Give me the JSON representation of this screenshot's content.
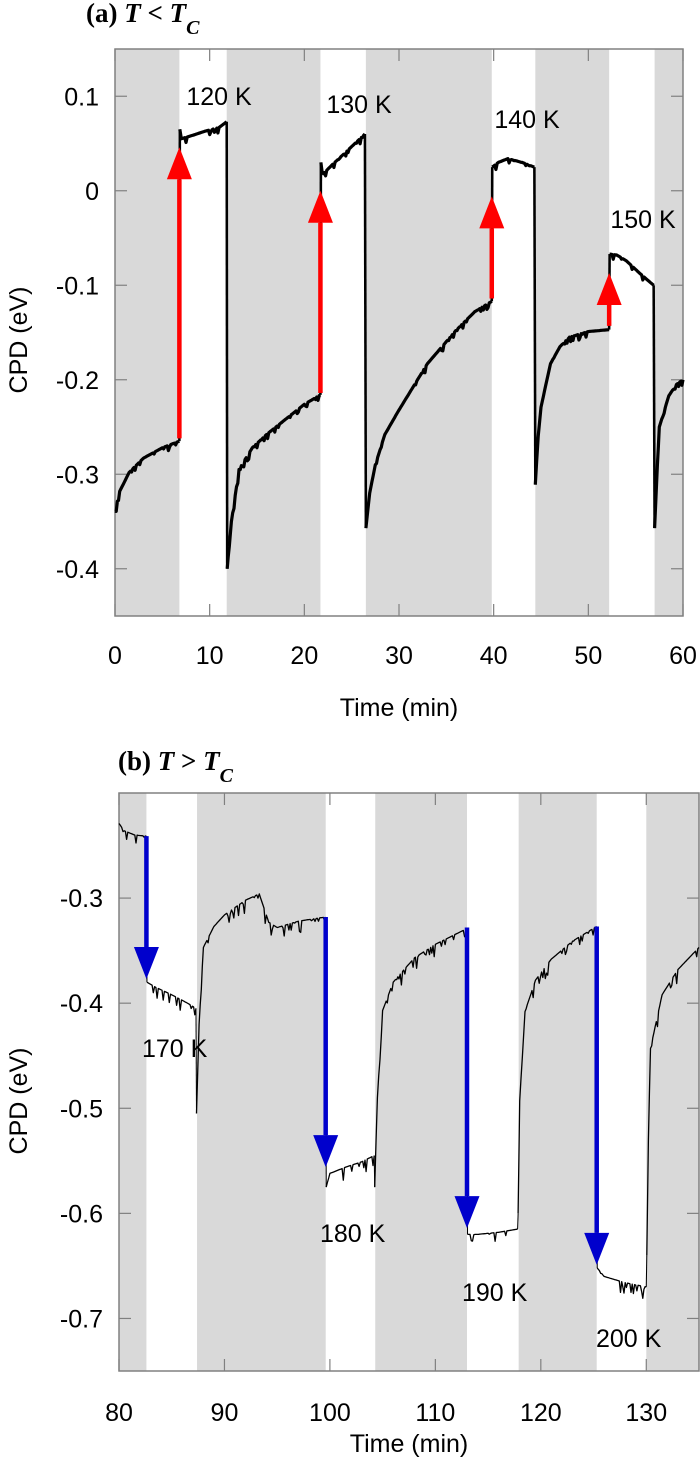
{
  "chart_data": [
    {
      "type": "line",
      "title_prefix": "(a)",
      "title_T": "T",
      "title_op": "<",
      "title_Tc": "T",
      "title_sub": "C",
      "xlabel": "Time (min)",
      "ylabel": "CPD (eV)",
      "xlim": [
        0,
        60
      ],
      "ylim": [
        -0.45,
        0.15
      ],
      "xticks": [
        "0",
        "10",
        "20",
        "30",
        "40",
        "50",
        "60"
      ],
      "xtick_values": [
        0,
        10,
        20,
        30,
        40,
        50,
        60
      ],
      "yticks": [
        "0.1",
        "0",
        "-0.1",
        "-0.2",
        "-0.3",
        "-0.4"
      ],
      "ytick_values": [
        0.1,
        0,
        -0.1,
        -0.2,
        -0.3,
        -0.4
      ],
      "grid": false,
      "shaded_intervals": [
        [
          0,
          6.8
        ],
        [
          11.8,
          21.7
        ],
        [
          26.5,
          39.8
        ],
        [
          44.4,
          52.2
        ],
        [
          57,
          60
        ]
      ],
      "shade_color": "#d9d9d9",
      "line_color": "#000000",
      "series": [
        {
          "values": [
            [
              0,
              -0.339
            ],
            [
              0.5,
              -0.318
            ],
            [
              1.5,
              -0.298
            ],
            [
              3,
              -0.283
            ],
            [
              5,
              -0.272
            ],
            [
              6.8,
              -0.265
            ]
          ]
        },
        {
          "values": [
            [
              6.85,
              0.065
            ],
            [
              7.0,
              0.055
            ],
            [
              8,
              0.058
            ],
            [
              9.5,
              0.063
            ],
            [
              11,
              0.067
            ],
            [
              11.8,
              0.073
            ]
          ]
        },
        {
          "values": [
            [
              11.85,
              -0.4
            ],
            [
              12.3,
              -0.35
            ],
            [
              13.1,
              -0.295
            ],
            [
              14.5,
              -0.272
            ],
            [
              16,
              -0.258
            ],
            [
              18,
              -0.242
            ],
            [
              20,
              -0.226
            ],
            [
              21.7,
              -0.216
            ]
          ]
        },
        {
          "values": [
            [
              21.75,
              0.03
            ],
            [
              22,
              0.018
            ],
            [
              23,
              0.028
            ],
            [
              24.5,
              0.042
            ],
            [
              26.4,
              0.06
            ]
          ]
        },
        {
          "values": [
            [
              26.5,
              -0.357
            ],
            [
              26.9,
              -0.32
            ],
            [
              27.5,
              -0.29
            ],
            [
              28.5,
              -0.258
            ],
            [
              30,
              -0.232
            ],
            [
              33,
              -0.183
            ],
            [
              36,
              -0.148
            ],
            [
              38,
              -0.128
            ],
            [
              39.8,
              -0.117
            ]
          ]
        },
        {
          "values": [
            [
              39.85,
              0.025
            ],
            [
              40.5,
              0.03
            ],
            [
              41.5,
              0.034
            ],
            [
              43,
              0.03
            ],
            [
              44.3,
              0.025
            ]
          ]
        },
        {
          "values": [
            [
              44.4,
              -0.311
            ],
            [
              44.7,
              -0.26
            ],
            [
              45,
              -0.229
            ],
            [
              46,
              -0.183
            ],
            [
              47,
              -0.165
            ],
            [
              48,
              -0.155
            ],
            [
              50,
              -0.149
            ],
            [
              52.2,
              -0.147
            ]
          ]
        },
        {
          "values": [
            [
              52.25,
              -0.067
            ],
            [
              53,
              -0.068
            ],
            [
              54,
              -0.074
            ],
            [
              55.5,
              -0.088
            ],
            [
              56.9,
              -0.1
            ]
          ]
        },
        {
          "values": [
            [
              57,
              -0.357
            ],
            [
              57.3,
              -0.29
            ],
            [
              57.5,
              -0.25
            ],
            [
              58.5,
              -0.217
            ],
            [
              59.3,
              -0.205
            ],
            [
              60,
              -0.2
            ]
          ]
        }
      ],
      "arrows": [
        {
          "t": 6.8,
          "from": -0.262,
          "to": 0.046,
          "color": "#ff0000"
        },
        {
          "t": 21.7,
          "from": -0.214,
          "to": 0.0,
          "color": "#ff0000"
        },
        {
          "t": 39.8,
          "from": -0.114,
          "to": -0.006,
          "color": "#ff0000"
        },
        {
          "t": 52.2,
          "from": -0.143,
          "to": -0.087,
          "color": "#ff0000"
        }
      ],
      "annotations": [
        "120 K",
        "130 K",
        "140 K",
        "150 K"
      ]
    },
    {
      "type": "line",
      "title_prefix": "(b)",
      "title_T": "T",
      "title_op": ">",
      "title_Tc": "T",
      "title_sub": "C",
      "xlabel": "Time (min)",
      "ylabel": "CPD (eV)",
      "xlim": [
        80,
        135
      ],
      "ylim": [
        -0.75,
        -0.2
      ],
      "xticks": [
        "80",
        "90",
        "100",
        "110",
        "120",
        "130"
      ],
      "xtick_values": [
        80,
        90,
        100,
        110,
        120,
        130
      ],
      "yticks": [
        "-0.3",
        "-0.4",
        "-0.5",
        "-0.6",
        "-0.7"
      ],
      "ytick_values": [
        -0.3,
        -0.4,
        -0.5,
        -0.6,
        -0.7
      ],
      "grid": false,
      "shaded_intervals": [
        [
          80,
          82.6
        ],
        [
          87.4,
          99.6
        ],
        [
          104.3,
          113
        ],
        [
          117.9,
          125.3
        ],
        [
          130,
          135
        ]
      ],
      "shade_color": "#d9d9d9",
      "line_color": "#000000",
      "series": [
        {
          "values": [
            [
              80,
              -0.229
            ],
            [
              80.5,
              -0.236
            ],
            [
              81.5,
              -0.24
            ],
            [
              82.6,
              -0.241
            ]
          ]
        },
        {
          "values": [
            [
              82.65,
              -0.38
            ],
            [
              83.5,
              -0.385
            ],
            [
              85,
              -0.392
            ],
            [
              86.5,
              -0.4
            ],
            [
              87.3,
              -0.405
            ]
          ]
        },
        {
          "values": [
            [
              87.35,
              -0.505
            ],
            [
              87.6,
              -0.42
            ],
            [
              88,
              -0.347
            ],
            [
              89,
              -0.327
            ],
            [
              90,
              -0.316
            ],
            [
              92,
              -0.302
            ],
            [
              93.3,
              -0.296
            ],
            [
              94.2,
              -0.323
            ],
            [
              95,
              -0.328
            ],
            [
              97,
              -0.322
            ],
            [
              99.6,
              -0.318
            ]
          ]
        },
        {
          "values": [
            [
              99.65,
              -0.575
            ],
            [
              100,
              -0.562
            ],
            [
              101.5,
              -0.556
            ],
            [
              103,
              -0.551
            ],
            [
              104.2,
              -0.545
            ]
          ]
        },
        {
          "values": [
            [
              104.25,
              -0.575
            ],
            [
              104.5,
              -0.49
            ],
            [
              105,
              -0.407
            ],
            [
              106,
              -0.38
            ],
            [
              108,
              -0.357
            ],
            [
              110,
              -0.344
            ],
            [
              113,
              -0.329
            ]
          ]
        },
        {
          "values": [
            [
              113.05,
              -0.62
            ],
            [
              114,
              -0.62
            ],
            [
              116,
              -0.618
            ],
            [
              117.8,
              -0.615
            ]
          ]
        },
        {
          "values": [
            [
              117.85,
              -0.6
            ],
            [
              118,
              -0.493
            ],
            [
              118.5,
              -0.408
            ],
            [
              119.5,
              -0.378
            ],
            [
              121,
              -0.358
            ],
            [
              123,
              -0.341
            ],
            [
              125.3,
              -0.327
            ]
          ]
        },
        {
          "values": [
            [
              125.35,
              -0.652
            ],
            [
              126,
              -0.66
            ],
            [
              128,
              -0.666
            ],
            [
              130,
              -0.67
            ]
          ]
        },
        {
          "values": [
            [
              130.05,
              -0.64
            ],
            [
              130.2,
              -0.53
            ],
            [
              130.4,
              -0.443
            ],
            [
              131.5,
              -0.392
            ],
            [
              133,
              -0.368
            ],
            [
              135,
              -0.347
            ]
          ]
        }
      ],
      "arrows": [
        {
          "t": 82.6,
          "from": -0.241,
          "to": -0.377,
          "color": "#0000cc"
        },
        {
          "t": 99.6,
          "from": -0.318,
          "to": -0.556,
          "color": "#0000cc"
        },
        {
          "t": 113.0,
          "from": -0.328,
          "to": -0.614,
          "color": "#0000cc"
        },
        {
          "t": 125.3,
          "from": -0.327,
          "to": -0.649,
          "color": "#0000cc"
        }
      ],
      "annotations": [
        "170 K",
        "180 K",
        "190 K",
        "200 K"
      ]
    }
  ]
}
